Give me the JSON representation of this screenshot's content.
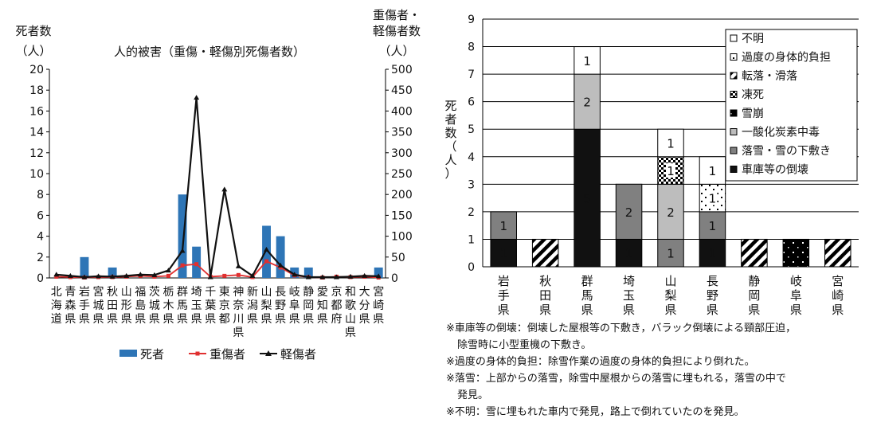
{
  "chart_data": [
    {
      "type": "bar+line",
      "title": "人的被害（重傷・軽傷別死傷者数）",
      "ylabel_left": [
        "死者数",
        "（人）"
      ],
      "ylabel_right": [
        "重傷者・",
        "軽傷者数",
        "（人）"
      ],
      "ylim_left": [
        0,
        20
      ],
      "ylim_right": [
        0,
        500
      ],
      "yticks_left": [
        0,
        2,
        4,
        6,
        8,
        10,
        12,
        14,
        16,
        18,
        20
      ],
      "yticks_right": [
        0,
        50,
        100,
        150,
        200,
        250,
        300,
        350,
        400,
        450,
        500
      ],
      "categories": [
        "北海道",
        "青森県",
        "岩手県",
        "宮城県",
        "秋田県",
        "山形県",
        "福島県",
        "茨城県",
        "栃木県",
        "群馬県",
        "埼玉県",
        "千葉県",
        "東京都",
        "神奈川県",
        "新潟県",
        "山梨県",
        "長野県",
        "岐阜県",
        "静岡県",
        "愛知県",
        "京都府",
        "和歌山県",
        "大分県",
        "宮崎県"
      ],
      "series": [
        {
          "name": "死者",
          "type": "bar",
          "axis": "left",
          "color": "#2e75b6",
          "values": [
            0,
            0,
            2,
            0,
            1,
            0,
            0,
            0,
            0,
            8,
            3,
            0,
            0,
            0,
            0,
            5,
            4,
            1,
            1,
            0,
            0,
            0,
            0,
            1
          ]
        },
        {
          "name": "重傷者",
          "type": "line",
          "axis": "right",
          "color": "#e03030",
          "marker": "square",
          "values": [
            3,
            2,
            1,
            2,
            2,
            3,
            5,
            3,
            5,
            30,
            33,
            3,
            5,
            7,
            2,
            40,
            25,
            6,
            2,
            1,
            3,
            2,
            3,
            1
          ]
        },
        {
          "name": "軽傷者",
          "type": "line",
          "axis": "right",
          "color": "#111111",
          "marker": "triangle",
          "values": [
            8,
            5,
            2,
            4,
            3,
            5,
            8,
            7,
            18,
            65,
            432,
            2,
            212,
            28,
            5,
            68,
            30,
            8,
            2,
            2,
            2,
            3,
            5,
            4
          ]
        }
      ],
      "legend_position": "bottom"
    },
    {
      "type": "stacked-bar",
      "ylabel": "死者数（人）",
      "ylim": [
        0,
        9
      ],
      "yticks": [
        0,
        1,
        2,
        3,
        4,
        5,
        6,
        7,
        8,
        9
      ],
      "categories": [
        "岩手県",
        "秋田県",
        "群馬県",
        "埼玉県",
        "山梨県",
        "長野県",
        "静岡県",
        "岐阜県",
        "宮崎県"
      ],
      "legend_position": "top-right",
      "series": [
        {
          "name": "車庫等の倒壊",
          "fill": "garage",
          "values": [
            1,
            0,
            5,
            1,
            0,
            1,
            0,
            0,
            0
          ]
        },
        {
          "name": "落雪・雪の下敷き",
          "fill": "snowfall",
          "values": [
            1,
            0,
            0,
            2,
            1,
            1,
            0,
            0,
            0
          ]
        },
        {
          "name": "一酸化炭素中毒",
          "fill": "co",
          "values": [
            0,
            0,
            2,
            0,
            2,
            0,
            0,
            0,
            0
          ]
        },
        {
          "name": "雪崩",
          "fill": "avalanche",
          "values": [
            0,
            0,
            0,
            0,
            0,
            0,
            0,
            1,
            0
          ]
        },
        {
          "name": "凍死",
          "fill": "freeze",
          "values": [
            0,
            0,
            0,
            0,
            1,
            0,
            0,
            0,
            0
          ]
        },
        {
          "name": "転落・滑落",
          "fill": "fall",
          "values": [
            0,
            1,
            0,
            0,
            0,
            0,
            1,
            0,
            1
          ]
        },
        {
          "name": "過度の身体的負担",
          "fill": "burden",
          "values": [
            0,
            0,
            0,
            0,
            0,
            1,
            0,
            0,
            0
          ]
        },
        {
          "name": "不明",
          "fill": "unknown",
          "values": [
            0,
            0,
            1,
            0,
            1,
            1,
            0,
            0,
            0
          ]
        }
      ]
    }
  ],
  "notes": [
    "※車庫等の倒壊：倒壊した屋根等の下敷き，バラック倒壊による頸部圧迫，",
    "除雪時に小型重機の下敷き。",
    "※過度の身体的負担：除雪作業の過度の身体的負担により倒れた。",
    "※落雪：上部からの落雪，除雪中屋根からの落雪に埋もれる，落雪の中で",
    "発見。",
    "※不明：雪に埋もれた車内で発見，路上で倒れていたのを発見。"
  ],
  "colors": {
    "deaths_bar": "#2e75b6",
    "serious_line": "#e03030",
    "minor_line": "#111111"
  }
}
